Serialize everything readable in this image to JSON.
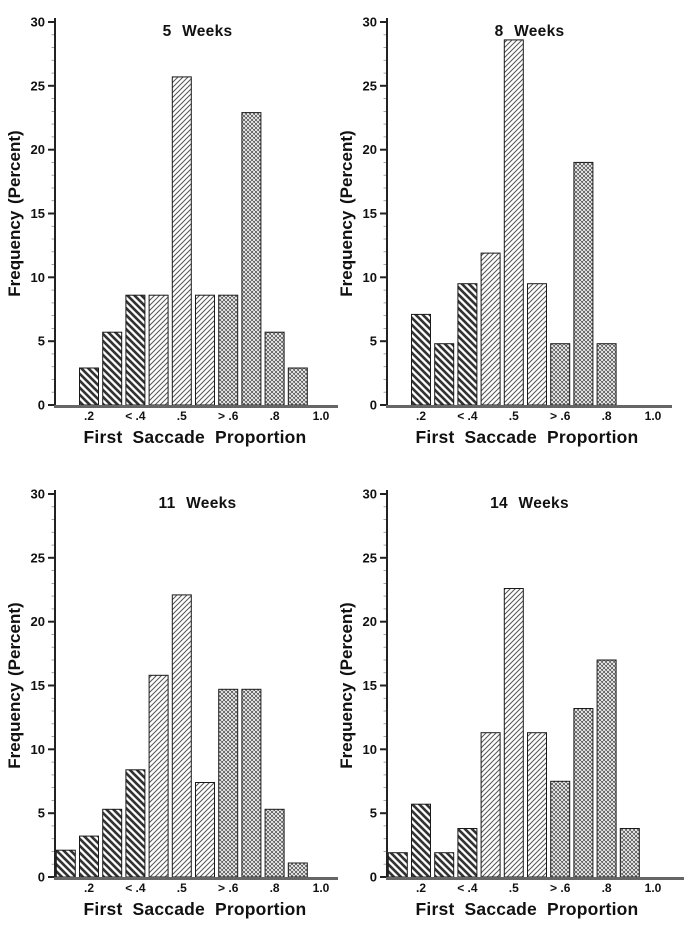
{
  "figure_ink_color": "#111111",
  "axis_color": "#222222",
  "baseline_color": "#666666",
  "hatch_legend": {
    "back": "thick-backslash-hatch (bins below .4)",
    "fwd": "thin-forwardslash-hatch (bins .4 to .6)",
    "cross": "fine-crosshatch (bins above .6)"
  },
  "chart_data": [
    {
      "type": "bar",
      "title": "5 Weeks",
      "xlabel": "First Saccade Proportion",
      "ylabel": "Frequency (Percent)",
      "ylim": [
        0,
        30
      ],
      "grid": false,
      "y_ticks": [
        "0",
        "5",
        "10",
        "15",
        "20",
        "25",
        "30"
      ],
      "x_tick_labels": [
        ".2",
        "< .4",
        ".5",
        "> .6",
        ".8",
        "1.0"
      ],
      "bins": [
        ".1",
        ".2",
        ".3",
        "<.4",
        ".45",
        ".5",
        ".55",
        ">.6",
        ".7",
        ".8",
        ".9"
      ],
      "values": [
        null,
        2.9,
        5.7,
        8.6,
        8.6,
        25.7,
        8.6,
        8.6,
        22.9,
        5.7,
        2.9
      ],
      "hatch": [
        "back",
        "back",
        "back",
        "back",
        "fwd",
        "fwd",
        "fwd",
        "cross",
        "cross",
        "cross",
        "cross"
      ]
    },
    {
      "type": "bar",
      "title": "8 Weeks",
      "xlabel": "First Saccade Proportion",
      "ylabel": "Frequency (Percent)",
      "ylim": [
        0,
        30
      ],
      "grid": false,
      "y_ticks": [
        "0",
        "5",
        "10",
        "15",
        "20",
        "25",
        "30"
      ],
      "x_tick_labels": [
        ".2",
        "< .4",
        ".5",
        "> .6",
        ".8",
        "1.0"
      ],
      "bins": [
        ".1",
        ".2",
        ".3",
        "<.4",
        ".45",
        ".5",
        ".55",
        ">.6",
        ".7",
        ".8",
        ".9"
      ],
      "values": [
        null,
        7.1,
        4.8,
        9.5,
        11.9,
        28.6,
        9.5,
        4.8,
        19.0,
        4.8,
        null
      ],
      "hatch": [
        "back",
        "back",
        "back",
        "back",
        "fwd",
        "fwd",
        "fwd",
        "cross",
        "cross",
        "cross",
        "cross"
      ]
    },
    {
      "type": "bar",
      "title": "11 Weeks",
      "xlabel": "First Saccade Proportion",
      "ylabel": "Frequency (Percent)",
      "ylim": [
        0,
        30
      ],
      "grid": false,
      "y_ticks": [
        "0",
        "5",
        "10",
        "15",
        "20",
        "25",
        "30"
      ],
      "x_tick_labels": [
        ".2",
        "< .4",
        ".5",
        "> .6",
        ".8",
        "1.0"
      ],
      "bins": [
        ".1",
        ".2",
        ".3",
        "<.4",
        ".45",
        ".5",
        ".55",
        ">.6",
        ".7",
        ".8",
        ".9"
      ],
      "values": [
        2.1,
        3.2,
        5.3,
        8.4,
        15.8,
        22.1,
        7.4,
        14.7,
        14.7,
        5.3,
        1.1
      ],
      "hatch": [
        "back",
        "back",
        "back",
        "back",
        "fwd",
        "fwd",
        "fwd",
        "cross",
        "cross",
        "cross",
        "cross"
      ]
    },
    {
      "type": "bar",
      "title": "14 Weeks",
      "xlabel": "First Saccade Proportion",
      "ylabel": "Frequency (Percent)",
      "ylim": [
        0,
        30
      ],
      "grid": false,
      "y_ticks": [
        "0",
        "5",
        "10",
        "15",
        "20",
        "25",
        "30"
      ],
      "x_tick_labels": [
        ".2",
        "< .4",
        ".5",
        "> .6",
        ".8",
        "1.0"
      ],
      "bins": [
        ".1",
        ".2",
        ".3",
        "<.4",
        ".45",
        ".5",
        ".55",
        ">.6",
        ".7",
        ".8",
        ".9"
      ],
      "values": [
        1.9,
        5.7,
        1.9,
        3.8,
        11.3,
        22.6,
        11.3,
        7.5,
        13.2,
        17.0,
        3.8
      ],
      "hatch": [
        "back",
        "back",
        "back",
        "back",
        "fwd",
        "fwd",
        "fwd",
        "cross",
        "cross",
        "cross",
        "cross"
      ]
    }
  ]
}
